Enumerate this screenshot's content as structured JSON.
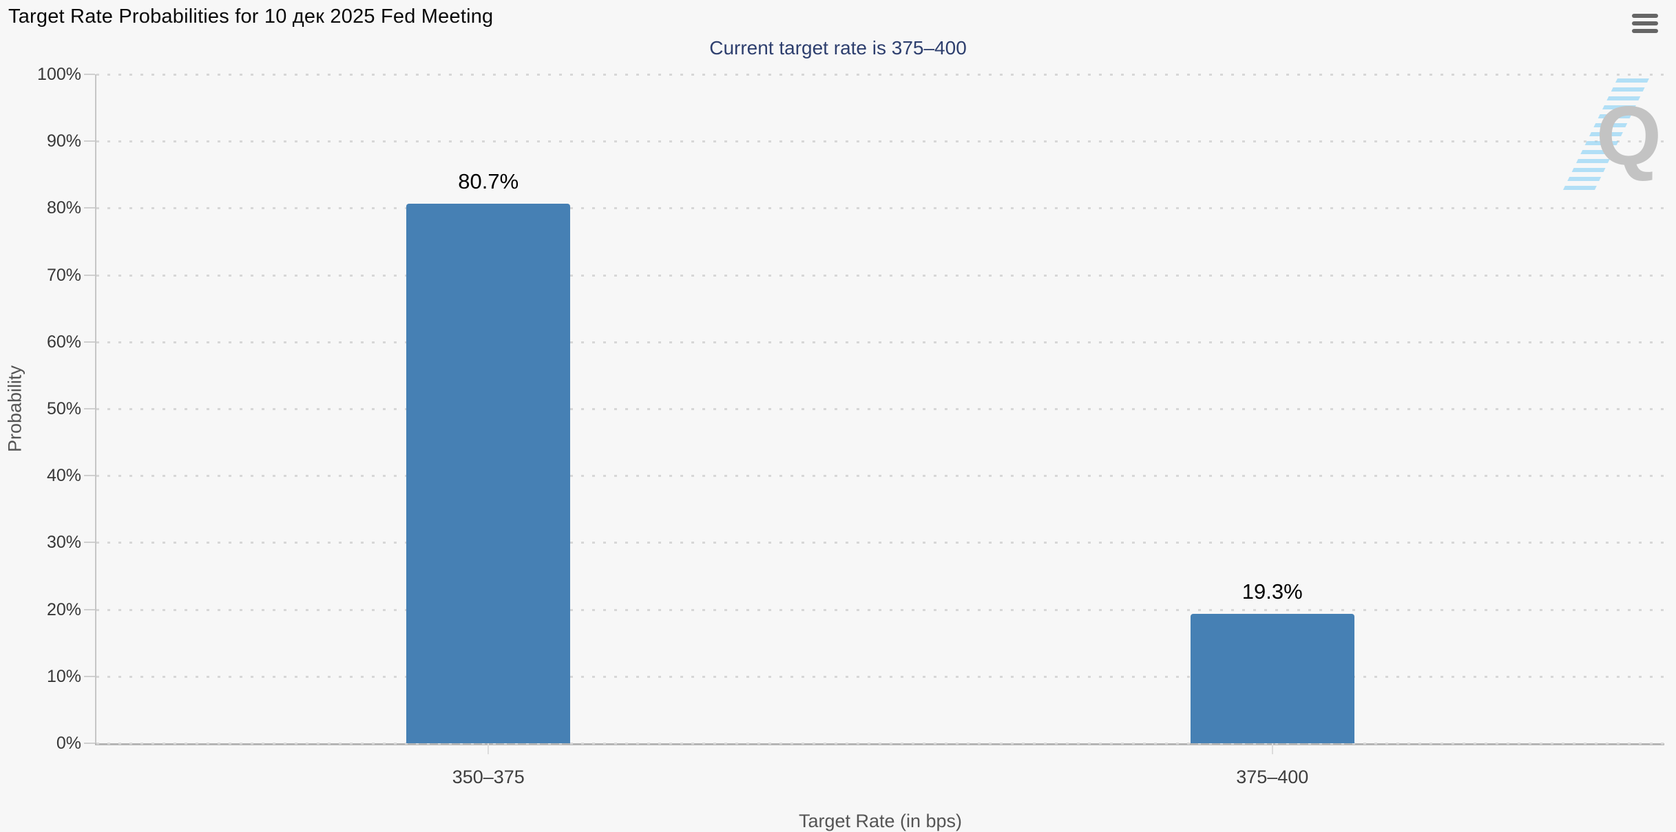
{
  "header": {
    "title": "Target Rate Probabilities for 10 дек 2025 Fed Meeting",
    "subtitle": "Current target rate is 375–400",
    "menu_icon": "hamburger-icon"
  },
  "watermark": {
    "letter": "Q"
  },
  "colors": {
    "background": "#f7f7f7",
    "bar": "#4680b4",
    "subtitle": "#2e3f6e",
    "axis_label": "#383838",
    "axis_title": "#555555",
    "gridline": "#d7d7d7",
    "menu_icon": "#666666",
    "watermark_q": "#c3c3c3",
    "watermark_stripes": "#a8dcf5"
  },
  "chart_data": {
    "type": "bar",
    "title": "Target Rate Probabilities for 10 дек 2025 Fed Meeting",
    "subtitle": "Current target rate is 375–400",
    "categories": [
      "350–375",
      "375–400"
    ],
    "values": [
      80.7,
      19.3
    ],
    "value_labels": [
      "80.7%",
      "19.3%"
    ],
    "xlabel": "Target Rate (in bps)",
    "ylabel": "Probability",
    "ylim": [
      0,
      100
    ],
    "ytick_step": 10,
    "ytick_labels": [
      "0%",
      "10%",
      "20%",
      "30%",
      "40%",
      "50%",
      "60%",
      "70%",
      "80%",
      "90%",
      "100%"
    ],
    "grid": "dotted-horizontal",
    "legend_position": "none",
    "bar_color": "#4680b4"
  }
}
